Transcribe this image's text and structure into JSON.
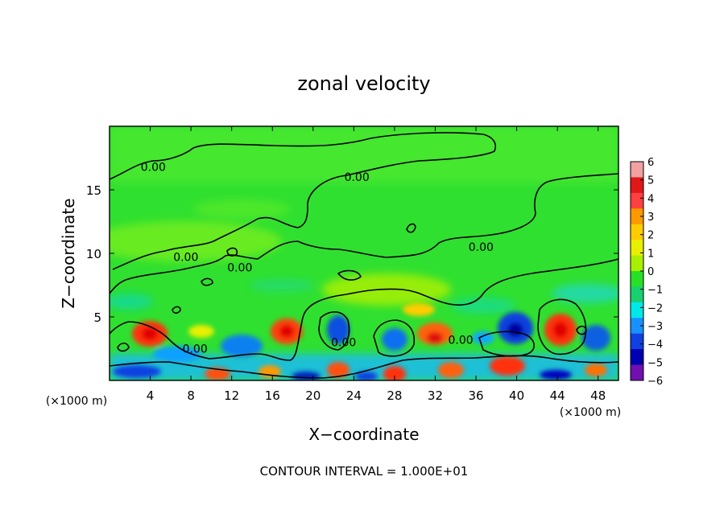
{
  "chart_data": {
    "type": "heatmap",
    "title": "zonal velocity",
    "xlabel": "X−coordinate",
    "ylabel": "Z−coordinate",
    "xunit": "(×1000 m)",
    "xunit_right": "(×1000 m)",
    "xlim": [
      0,
      50
    ],
    "ylim": [
      0,
      20
    ],
    "xticks": [
      4,
      8,
      12,
      16,
      20,
      24,
      28,
      32,
      36,
      40,
      44,
      48
    ],
    "yticks": [
      5,
      10,
      15
    ],
    "footer": "CONTOUR INTERVAL = 1.000E+01",
    "colorbar": {
      "ticks": [
        "6",
        "5",
        "4",
        "3",
        "2",
        "1",
        "0",
        "−1",
        "−2",
        "−3",
        "−4",
        "−5",
        "−6"
      ],
      "range": [
        -6,
        6
      ],
      "colors": [
        "#f2a0a0",
        "#e01818",
        "#ff4040",
        "#ff9900",
        "#ffcc00",
        "#e8f000",
        "#a8f000",
        "#28e028",
        "#18d070",
        "#00e8e8",
        "#1890ff",
        "#1040e0",
        "#0000b0",
        "#7010b0"
      ]
    },
    "contour_labels": [
      {
        "text": "0.00",
        "x": 4.3,
        "z": 16.8
      },
      {
        "text": "0.00",
        "x": 24.3,
        "z": 16.0
      },
      {
        "text": "0.00",
        "x": 7.5,
        "z": 9.7
      },
      {
        "text": "0.00",
        "x": 12.8,
        "z": 8.9
      },
      {
        "text": "0.00",
        "x": 36.5,
        "z": 10.5
      },
      {
        "text": "0.00",
        "x": 8.4,
        "z": 2.5
      },
      {
        "text": "0.00",
        "x": 23.0,
        "z": 3.0
      },
      {
        "text": "0.00",
        "x": 34.5,
        "z": 3.2
      }
    ]
  }
}
